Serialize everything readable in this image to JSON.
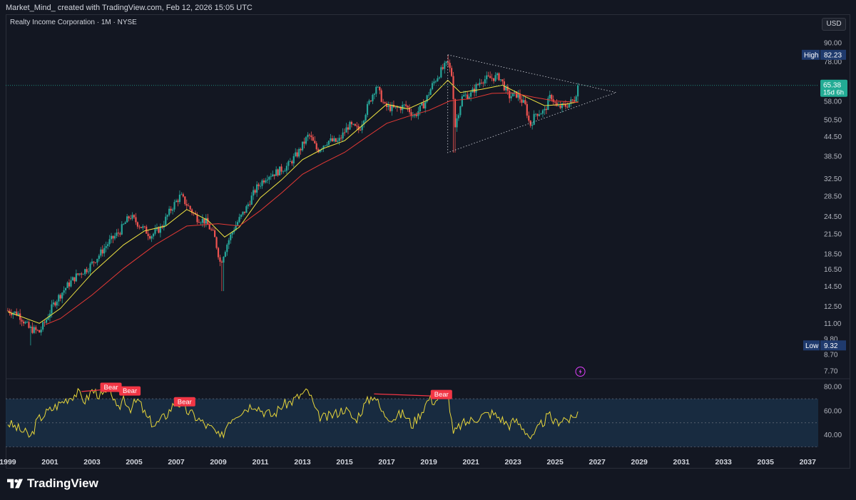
{
  "header": {
    "attribution": "Market_Mind_ created with TradingView.com, Feb 12, 2026 15:05 UTC"
  },
  "legend": {
    "title": "Realty Income Corporation · 1M · NYSE"
  },
  "currency_button": "USD",
  "footer": {
    "brand": "TradingView"
  },
  "colors": {
    "background": "#131722",
    "up": "#26a69a",
    "down": "#ef5350",
    "ema_fast": "#f0e442",
    "ema_slow": "#e53935",
    "rsi_line": "#e8d63a",
    "rsi_band": "#1a2f45",
    "bear_label": "#f23645",
    "last_price": "#22ab94",
    "high_low_label": "#1f3a6d"
  },
  "chart_data": [
    {
      "type": "candlestick",
      "title": "Realty Income Corporation · 1M · NYSE",
      "y_scale": "log",
      "ylim": [
        7.3,
        98
      ],
      "x_range": [
        1998.9,
        2037.5
      ],
      "y_ticks": [
        "90.00",
        "78.00",
        "58.00",
        "50.50",
        "44.50",
        "38.50",
        "32.50",
        "28.50",
        "24.50",
        "21.50",
        "18.50",
        "16.50",
        "14.50",
        "12.50",
        "11.00",
        "9.80",
        "8.70",
        "7.70"
      ],
      "x_ticks": [
        "1999",
        "2001",
        "2003",
        "2005",
        "2007",
        "2009",
        "2011",
        "2013",
        "2015",
        "2017",
        "2019",
        "2021",
        "2023",
        "2025",
        "2027",
        "2029",
        "2031",
        "2033",
        "2035",
        "2037"
      ],
      "price_labels": {
        "high": {
          "label": "High",
          "value": "82.23"
        },
        "low": {
          "label": "Low",
          "value": "9.32"
        },
        "last": {
          "value": "65.38",
          "countdown": "15d 6h"
        }
      },
      "price_path": [
        [
          1999.0,
          12.1
        ],
        [
          1999.5,
          11.8
        ],
        [
          2000.0,
          10.6
        ],
        [
          2000.5,
          10.3
        ],
        [
          2000.8,
          11.2
        ],
        [
          2001.2,
          12.8
        ],
        [
          2001.8,
          14.5
        ],
        [
          2002.3,
          15.8
        ],
        [
          2002.8,
          16.6
        ],
        [
          2003.3,
          18.2
        ],
        [
          2003.8,
          20.2
        ],
        [
          2004.3,
          21.8
        ],
        [
          2004.8,
          24.6
        ],
        [
          2005.3,
          22.8
        ],
        [
          2005.8,
          21.2
        ],
        [
          2006.3,
          22.6
        ],
        [
          2006.8,
          26.2
        ],
        [
          2007.2,
          28.6
        ],
        [
          2007.6,
          26.2
        ],
        [
          2008.0,
          24.2
        ],
        [
          2008.4,
          23.6
        ],
        [
          2008.8,
          21.2
        ],
        [
          2009.1,
          17.2
        ],
        [
          2009.4,
          19.8
        ],
        [
          2009.8,
          22.8
        ],
        [
          2010.3,
          25.8
        ],
        [
          2010.8,
          30.2
        ],
        [
          2011.3,
          33.2
        ],
        [
          2011.8,
          34.2
        ],
        [
          2012.3,
          35.8
        ],
        [
          2012.8,
          39.5
        ],
        [
          2013.3,
          45.2
        ],
        [
          2013.7,
          40.2
        ],
        [
          2014.2,
          43.2
        ],
        [
          2014.7,
          42.8
        ],
        [
          2015.2,
          48.5
        ],
        [
          2015.7,
          46.8
        ],
        [
          2016.2,
          58.2
        ],
        [
          2016.5,
          65.2
        ],
        [
          2016.9,
          55.8
        ],
        [
          2017.4,
          54.8
        ],
        [
          2017.9,
          56.2
        ],
        [
          2018.3,
          51.8
        ],
        [
          2018.8,
          57.2
        ],
        [
          2019.2,
          66.2
        ],
        [
          2019.6,
          73.2
        ],
        [
          2019.9,
          77.2
        ],
        [
          2020.1,
          70.2
        ],
        [
          2020.25,
          48.2
        ],
        [
          2020.6,
          60.2
        ],
        [
          2021.0,
          61.2
        ],
        [
          2021.5,
          68.2
        ],
        [
          2022.0,
          69.2
        ],
        [
          2022.35,
          69.8
        ],
        [
          2022.8,
          60.2
        ],
        [
          2023.2,
          61.2
        ],
        [
          2023.6,
          55.8
        ],
        [
          2023.8,
          48.2
        ],
        [
          2024.1,
          53.2
        ],
        [
          2024.5,
          53.8
        ],
        [
          2024.8,
          60.8
        ],
        [
          2025.1,
          55.2
        ],
        [
          2025.5,
          56.2
        ],
        [
          2025.9,
          58.6
        ],
        [
          2026.1,
          65.38
        ]
      ],
      "ema_fast_path": [
        [
          1999.0,
          12.0
        ],
        [
          2000.5,
          11.0
        ],
        [
          2001.5,
          12.3
        ],
        [
          2003.0,
          16.0
        ],
        [
          2004.5,
          19.8
        ],
        [
          2005.5,
          22.0
        ],
        [
          2006.5,
          22.8
        ],
        [
          2007.5,
          25.8
        ],
        [
          2008.5,
          23.8
        ],
        [
          2009.3,
          21.0
        ],
        [
          2010.0,
          22.6
        ],
        [
          2011.0,
          28.2
        ],
        [
          2012.0,
          32.2
        ],
        [
          2013.0,
          37.5
        ],
        [
          2014.0,
          40.8
        ],
        [
          2015.0,
          43.2
        ],
        [
          2016.0,
          49.5
        ],
        [
          2017.0,
          56.8
        ],
        [
          2018.0,
          54.8
        ],
        [
          2019.0,
          58.8
        ],
        [
          2019.9,
          68.0
        ],
        [
          2020.5,
          62.0
        ],
        [
          2021.5,
          63.5
        ],
        [
          2022.5,
          65.5
        ],
        [
          2023.5,
          60.5
        ],
        [
          2024.5,
          56.2
        ],
        [
          2025.5,
          56.8
        ],
        [
          2026.1,
          57.8
        ]
      ],
      "ema_slow_path": [
        [
          2000.8,
          10.9
        ],
        [
          2001.5,
          11.4
        ],
        [
          2003.0,
          13.6
        ],
        [
          2004.5,
          16.6
        ],
        [
          2006.0,
          19.8
        ],
        [
          2007.5,
          22.8
        ],
        [
          2009.0,
          23.2
        ],
        [
          2010.0,
          22.8
        ],
        [
          2011.0,
          25.6
        ],
        [
          2012.0,
          29.2
        ],
        [
          2013.0,
          33.6
        ],
        [
          2014.0,
          36.6
        ],
        [
          2015.0,
          39.6
        ],
        [
          2016.0,
          44.2
        ],
        [
          2017.0,
          49.2
        ],
        [
          2018.0,
          51.8
        ],
        [
          2019.0,
          54.2
        ],
        [
          2020.0,
          58.2
        ],
        [
          2021.0,
          59.2
        ],
        [
          2022.0,
          61.6
        ],
        [
          2023.0,
          61.8
        ],
        [
          2024.0,
          59.8
        ],
        [
          2025.0,
          58.2
        ],
        [
          2026.1,
          57.6
        ]
      ],
      "triangle": [
        [
          2019.9,
          82.23
        ],
        [
          2027.9,
          62.0
        ],
        [
          2019.9,
          39.5
        ]
      ]
    },
    {
      "type": "line",
      "title": "RSI",
      "ylim": [
        28,
        86
      ],
      "y_ticks": [
        "80.00",
        "60.00",
        "40.00"
      ],
      "band": [
        30,
        70
      ],
      "midline": 50,
      "rsi_path": [
        [
          1999.0,
          50
        ],
        [
          1999.4,
          46
        ],
        [
          1999.8,
          42
        ],
        [
          2000.1,
          38
        ],
        [
          2000.4,
          52
        ],
        [
          2000.8,
          58
        ],
        [
          2001.3,
          64
        ],
        [
          2001.8,
          70
        ],
        [
          2002.3,
          75
        ],
        [
          2002.7,
          68
        ],
        [
          2003.0,
          77
        ],
        [
          2003.5,
          72
        ],
        [
          2003.9,
          78
        ],
        [
          2004.2,
          58
        ],
        [
          2004.5,
          72
        ],
        [
          2004.8,
          62
        ],
        [
          2005.2,
          69
        ],
        [
          2005.6,
          54
        ],
        [
          2006.0,
          48
        ],
        [
          2006.5,
          56
        ],
        [
          2007.0,
          68
        ],
        [
          2007.5,
          60
        ],
        [
          2008.0,
          54
        ],
        [
          2008.4,
          48
        ],
        [
          2008.8,
          44
        ],
        [
          2009.1,
          36
        ],
        [
          2009.5,
          52
        ],
        [
          2009.9,
          58
        ],
        [
          2010.3,
          62
        ],
        [
          2010.7,
          66
        ],
        [
          2011.1,
          60
        ],
        [
          2011.6,
          56
        ],
        [
          2012.0,
          64
        ],
        [
          2012.5,
          68
        ],
        [
          2013.0,
          74
        ],
        [
          2013.3,
          76
        ],
        [
          2013.7,
          56
        ],
        [
          2014.1,
          54
        ],
        [
          2014.6,
          58
        ],
        [
          2015.0,
          62
        ],
        [
          2015.5,
          52
        ],
        [
          2016.0,
          66
        ],
        [
          2016.4,
          74
        ],
        [
          2016.8,
          58
        ],
        [
          2017.3,
          54
        ],
        [
          2017.8,
          58
        ],
        [
          2018.2,
          48
        ],
        [
          2018.6,
          58
        ],
        [
          2019.0,
          70
        ],
        [
          2019.3,
          68
        ],
        [
          2019.6,
          74
        ],
        [
          2019.9,
          76
        ],
        [
          2020.15,
          40
        ],
        [
          2020.5,
          48
        ],
        [
          2021.0,
          52
        ],
        [
          2021.5,
          56
        ],
        [
          2022.0,
          58
        ],
        [
          2022.4,
          54
        ],
        [
          2022.8,
          48
        ],
        [
          2023.1,
          52
        ],
        [
          2023.5,
          46
        ],
        [
          2023.9,
          36
        ],
        [
          2024.3,
          48
        ],
        [
          2024.7,
          56
        ],
        [
          2025.0,
          50
        ],
        [
          2025.4,
          54
        ],
        [
          2025.8,
          52
        ],
        [
          2026.1,
          60
        ]
      ],
      "divergences": [
        {
          "label": "Bear",
          "from": [
            2002.5,
            76
          ],
          "to": [
            2003.9,
            78
          ]
        },
        {
          "label": "Bear",
          "from": [
            2004.2,
            76
          ],
          "to": [
            2004.8,
            75
          ]
        },
        {
          "label": "Bear",
          "from": [
            2007.2,
            68
          ],
          "to": [
            2007.4,
            66
          ]
        },
        {
          "label": "Bear",
          "from": [
            2016.4,
            74
          ],
          "to": [
            2019.6,
            72
          ]
        }
      ]
    }
  ]
}
